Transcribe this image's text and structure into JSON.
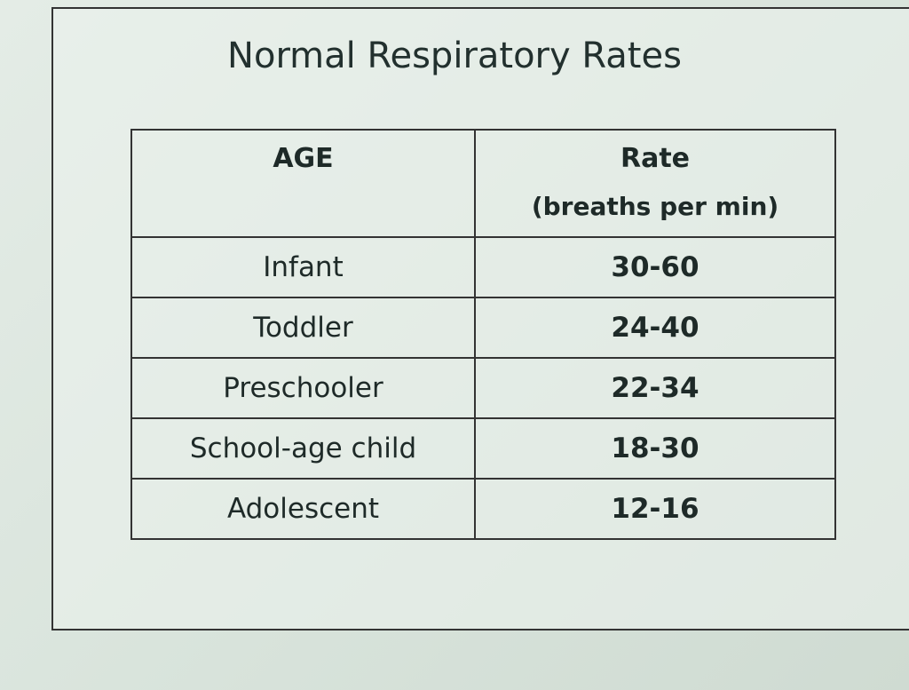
{
  "title": "Normal Respiratory Rates",
  "table": {
    "header": [
      "AGE",
      "Rate",
      "(breaths per min)"
    ],
    "rows": [
      [
        "Infant",
        "30-60"
      ],
      [
        "Toddler",
        "24-40"
      ],
      [
        "Preschooler",
        "22-34"
      ],
      [
        "School-age child",
        "18-30"
      ],
      [
        "Adolescent",
        "12-16"
      ]
    ]
  }
}
